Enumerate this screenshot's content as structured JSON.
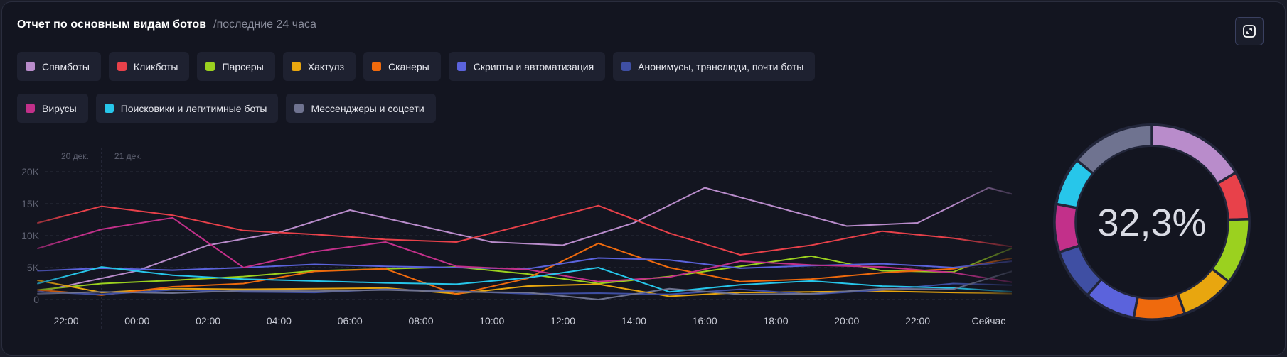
{
  "header": {
    "title": "Отчет по основным видам ботов",
    "subtitle": "/последние 24 часа"
  },
  "expand_button": {
    "icon": "expand-icon"
  },
  "legend": {
    "rows": [
      [
        {
          "label": "Спамботы",
          "color": "#b98ccb"
        },
        {
          "label": "Кликботы",
          "color": "#e8414a"
        },
        {
          "label": "Парсеры",
          "color": "#9bd11f"
        },
        {
          "label": "Хактулз",
          "color": "#e8a60f"
        },
        {
          "label": "Сканеры",
          "color": "#ef6a0d"
        },
        {
          "label": "Скрипты и автоматизация",
          "color": "#5b63dc"
        },
        {
          "label": "Анонимусы, транслюди, почти боты",
          "color": "#3f4fa3"
        }
      ],
      [
        {
          "label": "Вирусы",
          "color": "#c2308a"
        },
        {
          "label": "Поисковики и легитимные боты",
          "color": "#27c6ea"
        },
        {
          "label": "Мессенджеры и соцсети",
          "color": "#6f7390"
        }
      ]
    ]
  },
  "chart_data": {
    "type": "line",
    "ylim": [
      0,
      20000
    ],
    "yticks": [
      "0",
      "5K",
      "10K",
      "15K",
      "20K"
    ],
    "xticks": [
      "22:00",
      "00:00",
      "02:00",
      "04:00",
      "06:00",
      "08:00",
      "10:00",
      "12:00",
      "14:00",
      "16:00",
      "18:00",
      "20:00",
      "22:00",
      "Сейчас"
    ],
    "day_labels": [
      "20 дек.",
      "21 дек."
    ],
    "grid": true,
    "series": [
      {
        "name": "Спамботы",
        "color": "#b98ccb",
        "points": [
          [
            -0.8,
            1200
          ],
          [
            2,
            4500
          ],
          [
            4,
            8500
          ],
          [
            6,
            10500
          ],
          [
            8,
            14000
          ],
          [
            10,
            11500
          ],
          [
            12,
            9000
          ],
          [
            14,
            8500
          ],
          [
            16,
            12000
          ],
          [
            18,
            17500
          ],
          [
            20,
            14500
          ],
          [
            22,
            11500
          ],
          [
            24,
            12000
          ],
          [
            26,
            17500
          ],
          [
            28,
            14500
          ],
          [
            28.6,
            13500
          ]
        ]
      },
      {
        "name": "Кликботы",
        "color": "#e8414a",
        "points": [
          [
            -0.8,
            12000
          ],
          [
            1,
            14600
          ],
          [
            3,
            13200
          ],
          [
            5,
            10800
          ],
          [
            7,
            10200
          ],
          [
            9,
            9400
          ],
          [
            11,
            9000
          ],
          [
            13,
            11800
          ],
          [
            15,
            14700
          ],
          [
            17,
            10400
          ],
          [
            19,
            7000
          ],
          [
            21,
            8500
          ],
          [
            23,
            10700
          ],
          [
            25,
            9600
          ],
          [
            27,
            8000
          ],
          [
            28.6,
            5000
          ]
        ]
      },
      {
        "name": "Парсеры",
        "color": "#9bd11f",
        "points": [
          [
            -0.8,
            1500
          ],
          [
            1,
            2500
          ],
          [
            3,
            3000
          ],
          [
            5,
            3600
          ],
          [
            7,
            4500
          ],
          [
            9,
            4800
          ],
          [
            11,
            5100
          ],
          [
            13,
            4000
          ],
          [
            15,
            2500
          ],
          [
            17,
            3600
          ],
          [
            19,
            5200
          ],
          [
            21,
            6800
          ],
          [
            23,
            4500
          ],
          [
            25,
            4300
          ],
          [
            27,
            8800
          ],
          [
            28.6,
            5500
          ]
        ]
      },
      {
        "name": "Хактулз",
        "color": "#e8a60f",
        "points": [
          [
            -0.8,
            3000
          ],
          [
            1,
            1100
          ],
          [
            3,
            1700
          ],
          [
            5,
            1600
          ],
          [
            7,
            1700
          ],
          [
            9,
            1800
          ],
          [
            11,
            900
          ],
          [
            13,
            2100
          ],
          [
            15,
            2400
          ],
          [
            17,
            500
          ],
          [
            19,
            1100
          ],
          [
            21,
            1200
          ],
          [
            23,
            1300
          ],
          [
            25,
            1100
          ],
          [
            27,
            900
          ],
          [
            28.6,
            700
          ]
        ]
      },
      {
        "name": "Сканеры",
        "color": "#ef6a0d",
        "points": [
          [
            -0.8,
            1500
          ],
          [
            1,
            700
          ],
          [
            3,
            2000
          ],
          [
            5,
            2500
          ],
          [
            7,
            4400
          ],
          [
            9,
            4800
          ],
          [
            11,
            800
          ],
          [
            13,
            3300
          ],
          [
            15,
            8800
          ],
          [
            17,
            5000
          ],
          [
            19,
            2800
          ],
          [
            21,
            3200
          ],
          [
            23,
            4200
          ],
          [
            25,
            4800
          ],
          [
            27,
            6800
          ],
          [
            28.6,
            8800
          ]
        ]
      },
      {
        "name": "Скрипты и автоматизация",
        "color": "#5b63dc",
        "points": [
          [
            -0.8,
            4500
          ],
          [
            1,
            4900
          ],
          [
            3,
            4600
          ],
          [
            5,
            5000
          ],
          [
            7,
            5500
          ],
          [
            9,
            5200
          ],
          [
            11,
            5000
          ],
          [
            13,
            4800
          ],
          [
            15,
            6500
          ],
          [
            17,
            6200
          ],
          [
            19,
            4900
          ],
          [
            21,
            5300
          ],
          [
            23,
            5600
          ],
          [
            25,
            5000
          ],
          [
            27,
            6200
          ],
          [
            28.6,
            5500
          ]
        ]
      },
      {
        "name": "Анонимусы, транслюди, почти боты",
        "color": "#3f4fa3",
        "points": [
          [
            -0.8,
            1200
          ],
          [
            1,
            800
          ],
          [
            3,
            1500
          ],
          [
            5,
            1200
          ],
          [
            7,
            1100
          ],
          [
            9,
            1600
          ],
          [
            11,
            1300
          ],
          [
            13,
            900
          ],
          [
            15,
            1000
          ],
          [
            17,
            800
          ],
          [
            19,
            1600
          ],
          [
            21,
            800
          ],
          [
            23,
            1500
          ],
          [
            25,
            2500
          ],
          [
            27,
            2200
          ],
          [
            28.6,
            2100
          ]
        ]
      },
      {
        "name": "Вирусы",
        "color": "#c2308a",
        "points": [
          [
            -0.8,
            8000
          ],
          [
            1,
            11000
          ],
          [
            3,
            12800
          ],
          [
            5,
            5000
          ],
          [
            7,
            7500
          ],
          [
            9,
            9000
          ],
          [
            11,
            5200
          ],
          [
            13,
            4700
          ],
          [
            15,
            2800
          ],
          [
            17,
            3500
          ],
          [
            19,
            6000
          ],
          [
            21,
            5400
          ],
          [
            23,
            5100
          ],
          [
            25,
            4200
          ],
          [
            27,
            2400
          ],
          [
            28.6,
            5300
          ]
        ]
      },
      {
        "name": "Поисковики и легитимные боты",
        "color": "#27c6ea",
        "points": [
          [
            -0.8,
            2500
          ],
          [
            1,
            5100
          ],
          [
            3,
            3800
          ],
          [
            5,
            3200
          ],
          [
            7,
            2900
          ],
          [
            9,
            2600
          ],
          [
            11,
            2400
          ],
          [
            13,
            3400
          ],
          [
            15,
            5000
          ],
          [
            17,
            1200
          ],
          [
            19,
            2300
          ],
          [
            21,
            2900
          ],
          [
            23,
            2100
          ],
          [
            25,
            1800
          ],
          [
            27,
            1100
          ],
          [
            28.6,
            2200
          ]
        ]
      },
      {
        "name": "Мессенджеры и соцсети",
        "color": "#6f7390",
        "points": [
          [
            -0.8,
            900
          ],
          [
            1,
            1200
          ],
          [
            3,
            1000
          ],
          [
            5,
            1400
          ],
          [
            7,
            1300
          ],
          [
            9,
            1500
          ],
          [
            11,
            1200
          ],
          [
            13,
            1100
          ],
          [
            15,
            0
          ],
          [
            17,
            1700
          ],
          [
            19,
            800
          ],
          [
            21,
            900
          ],
          [
            23,
            1700
          ],
          [
            25,
            1600
          ],
          [
            27,
            5000
          ],
          [
            28.6,
            3200
          ]
        ]
      }
    ]
  },
  "donut": {
    "center_label": "32,3%",
    "segments": [
      {
        "name": "Спамботы",
        "value": 16.5,
        "color": "#b98ccb"
      },
      {
        "name": "Кликботы",
        "value": 8.0,
        "color": "#e8414a"
      },
      {
        "name": "Парсеры",
        "value": 11.0,
        "color": "#9bd11f"
      },
      {
        "name": "Хактулз",
        "value": 9.0,
        "color": "#e8a60f"
      },
      {
        "name": "Сканеры",
        "value": 8.5,
        "color": "#ef6a0d"
      },
      {
        "name": "Скрипты и автоматизация",
        "value": 8.5,
        "color": "#5b63dc"
      },
      {
        "name": "Анонимусы, транслюди, почти боты",
        "value": 8.5,
        "color": "#3f4fa3"
      },
      {
        "name": "Вирусы",
        "value": 8.0,
        "color": "#c2308a"
      },
      {
        "name": "Поисковики и легитимные боты",
        "value": 8.0,
        "color": "#27c6ea"
      },
      {
        "name": "Мессенджеры и соцсети",
        "value": 14.0,
        "color": "#6f7390"
      }
    ]
  }
}
